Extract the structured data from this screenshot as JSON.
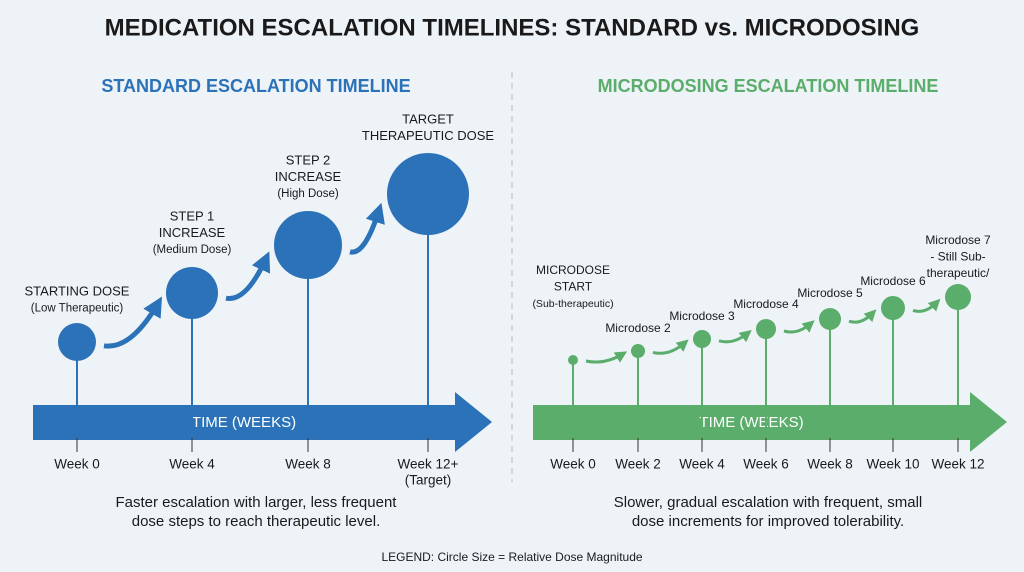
{
  "title": "MEDICATION ESCALATION TIMELINES: STANDARD vs. MICRODOSING",
  "standard": {
    "heading": "STANDARD ESCALATION TIMELINE",
    "stages": [
      [
        "STARTING DOSE",
        "(Low Therapeutic)"
      ],
      [
        "STEP 1",
        "INCREASE",
        "(Medium Dose)"
      ],
      [
        "STEP 2",
        "INCREASE",
        "(High Dose)"
      ],
      [
        "TARGET",
        "THERAPEUTIC DOSE"
      ]
    ],
    "axis_label": "TIME (WEEKS)",
    "weeks": [
      [
        "Week 0"
      ],
      [
        "Week 4"
      ],
      [
        "Week 8"
      ],
      [
        "Week 12+",
        "(Target)"
      ]
    ],
    "caption": [
      "Faster escalation with larger, less frequent",
      "dose steps to reach therapeutic level."
    ]
  },
  "microdosing": {
    "heading": "MICRODOSING ESCALATION TIMELINE",
    "stages": [
      [
        "MICRODOSE",
        "START",
        "(Sub-therapeutic)"
      ],
      [
        "Microdose 2"
      ],
      [
        "Microdose 3"
      ],
      [
        "Microdose 4"
      ],
      [
        "Microdose 5"
      ],
      [
        "Microdose 6"
      ],
      [
        "Microdose 7",
        "- Still Sub-",
        "therapeutic/"
      ]
    ],
    "axis_label": "TIME (WEEKS)",
    "weeks": [
      [
        "Week 0"
      ],
      [
        "Week 2"
      ],
      [
        "Week 4"
      ],
      [
        "Week 6"
      ],
      [
        "Week 8"
      ],
      [
        "Week 10"
      ],
      [
        "Week 12"
      ]
    ],
    "caption": [
      "Slower, gradual escalation with frequent, small",
      "dose increments for improved tolerability."
    ]
  },
  "legend": "LEGEND: Circle Size = Relative Dose Magnitude"
}
